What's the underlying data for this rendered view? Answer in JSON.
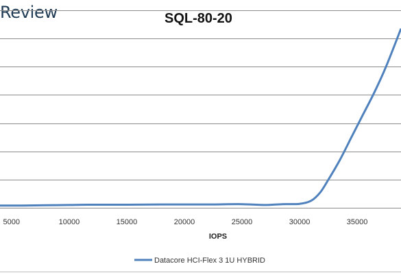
{
  "brand": {
    "text": "Review"
  },
  "chart_data": {
    "type": "line",
    "title": "SQL-80-20",
    "xlabel": "IOPS",
    "ylabel": "",
    "xlim": [
      4000,
      38800
    ],
    "ylim": [
      0,
      7
    ],
    "xticks": [
      5000,
      10000,
      15000,
      20000,
      25000,
      30000,
      35000
    ],
    "gridlines": "horizontal",
    "legend_position": "bottom",
    "series": [
      {
        "name": "Datacore HCI-Flex 3 1U HYBRID",
        "color": "#4f81bd",
        "points": [
          [
            4000,
            0.08
          ],
          [
            6000,
            0.08
          ],
          [
            8000,
            0.09
          ],
          [
            10000,
            0.1
          ],
          [
            12000,
            0.11
          ],
          [
            15000,
            0.11
          ],
          [
            18000,
            0.12
          ],
          [
            20000,
            0.12
          ],
          [
            22500,
            0.12
          ],
          [
            25000,
            0.13
          ],
          [
            27000,
            0.1
          ],
          [
            28500,
            0.13
          ],
          [
            30000,
            0.14
          ],
          [
            31000,
            0.25
          ],
          [
            31800,
            0.55
          ],
          [
            32500,
            1.0
          ],
          [
            33500,
            1.7
          ],
          [
            34500,
            2.5
          ],
          [
            35500,
            3.3
          ],
          [
            36500,
            4.1
          ],
          [
            37500,
            5.0
          ],
          [
            38800,
            6.35
          ]
        ]
      }
    ]
  }
}
